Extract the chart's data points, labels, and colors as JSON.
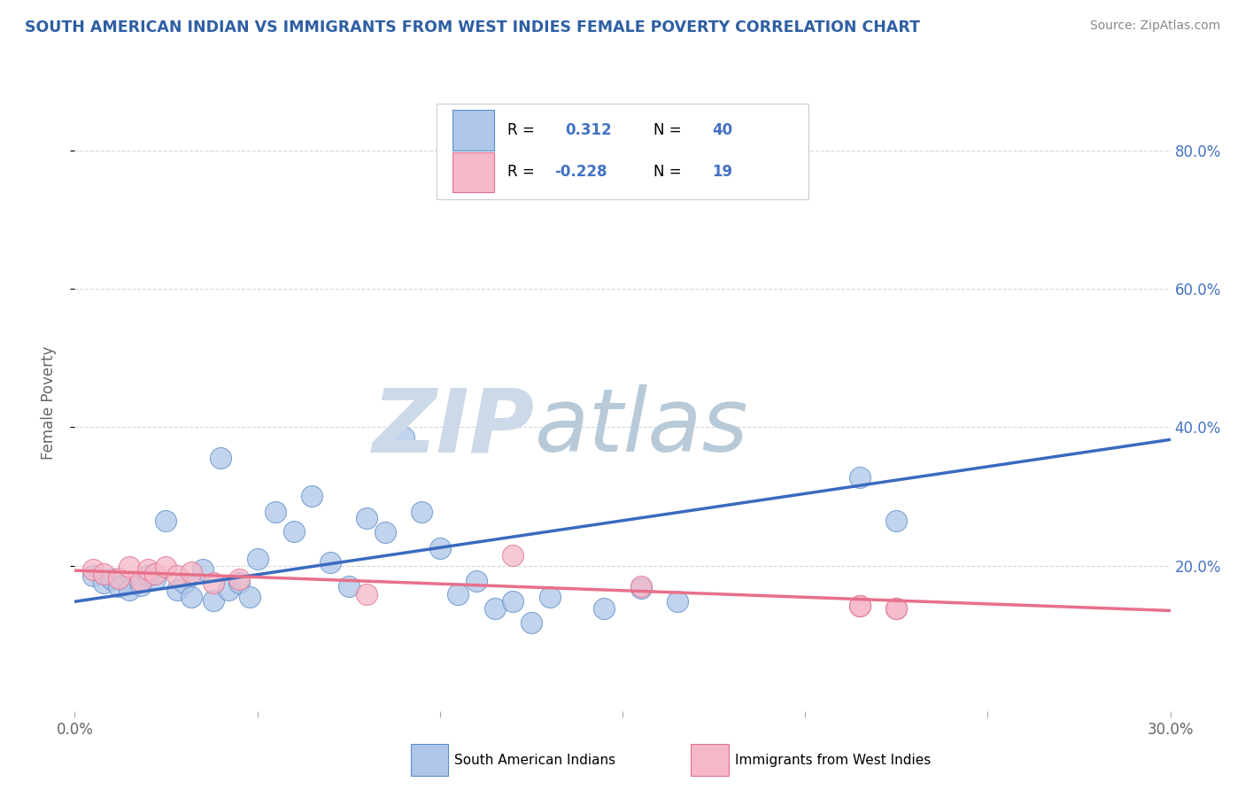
{
  "title": "SOUTH AMERICAN INDIAN VS IMMIGRANTS FROM WEST INDIES FEMALE POVERTY CORRELATION CHART",
  "source": "Source: ZipAtlas.com",
  "ylabel": "Female Poverty",
  "xlim": [
    0.0,
    0.3
  ],
  "ylim": [
    -0.01,
    0.88
  ],
  "xticks": [
    0.0,
    0.05,
    0.1,
    0.15,
    0.2,
    0.25,
    0.3
  ],
  "xtick_labels": [
    "0.0%",
    "",
    "",
    "",
    "",
    "",
    "30.0%"
  ],
  "ytick_vals_right": [
    0.2,
    0.4,
    0.6,
    0.8
  ],
  "ytick_labels_right": [
    "20.0%",
    "40.0%",
    "60.0%",
    "80.0%"
  ],
  "blue_fill": "#aec6e8",
  "blue_edge": "#5b8ec9",
  "pink_fill": "#f5b8c8",
  "pink_edge": "#e07090",
  "blue_line_color": "#3a6abf",
  "pink_line_color": "#e8708a",
  "title_color": "#2e5fa3",
  "source_color": "#888888",
  "watermark_zip_color": "#ccd9e8",
  "watermark_atlas_color": "#b8cad8",
  "grid_color": "#cccccc",
  "blue_scatter_x": [
    0.005,
    0.008,
    0.01,
    0.012,
    0.015,
    0.018,
    0.02,
    0.022,
    0.025,
    0.028,
    0.03,
    0.032,
    0.035,
    0.038,
    0.04,
    0.042,
    0.045,
    0.048,
    0.05,
    0.055,
    0.06,
    0.065,
    0.07,
    0.075,
    0.08,
    0.085,
    0.09,
    0.095,
    0.1,
    0.105,
    0.11,
    0.115,
    0.12,
    0.125,
    0.13,
    0.145,
    0.155,
    0.165,
    0.215,
    0.225
  ],
  "blue_scatter_y": [
    0.185,
    0.175,
    0.18,
    0.17,
    0.165,
    0.172,
    0.185,
    0.18,
    0.265,
    0.165,
    0.175,
    0.155,
    0.195,
    0.15,
    0.355,
    0.165,
    0.175,
    0.155,
    0.21,
    0.278,
    0.25,
    0.3,
    0.205,
    0.17,
    0.268,
    0.248,
    0.385,
    0.278,
    0.225,
    0.158,
    0.178,
    0.138,
    0.148,
    0.118,
    0.155,
    0.138,
    0.168,
    0.148,
    0.328,
    0.265
  ],
  "pink_scatter_x": [
    0.005,
    0.008,
    0.012,
    0.015,
    0.018,
    0.02,
    0.022,
    0.025,
    0.028,
    0.032,
    0.038,
    0.045,
    0.08,
    0.12,
    0.155,
    0.215,
    0.225,
    0.215,
    0.225
  ],
  "pink_scatter_y": [
    0.195,
    0.188,
    0.182,
    0.198,
    0.178,
    0.195,
    0.188,
    0.198,
    0.185,
    0.19,
    0.175,
    0.18,
    0.158,
    0.215,
    0.17,
    0.142,
    0.138,
    0.142,
    0.138
  ],
  "blue_trend_x": [
    0.0,
    0.3
  ],
  "blue_trend_y": [
    0.148,
    0.382
  ],
  "pink_trend_x": [
    0.0,
    0.3
  ],
  "pink_trend_y": [
    0.193,
    0.135
  ]
}
